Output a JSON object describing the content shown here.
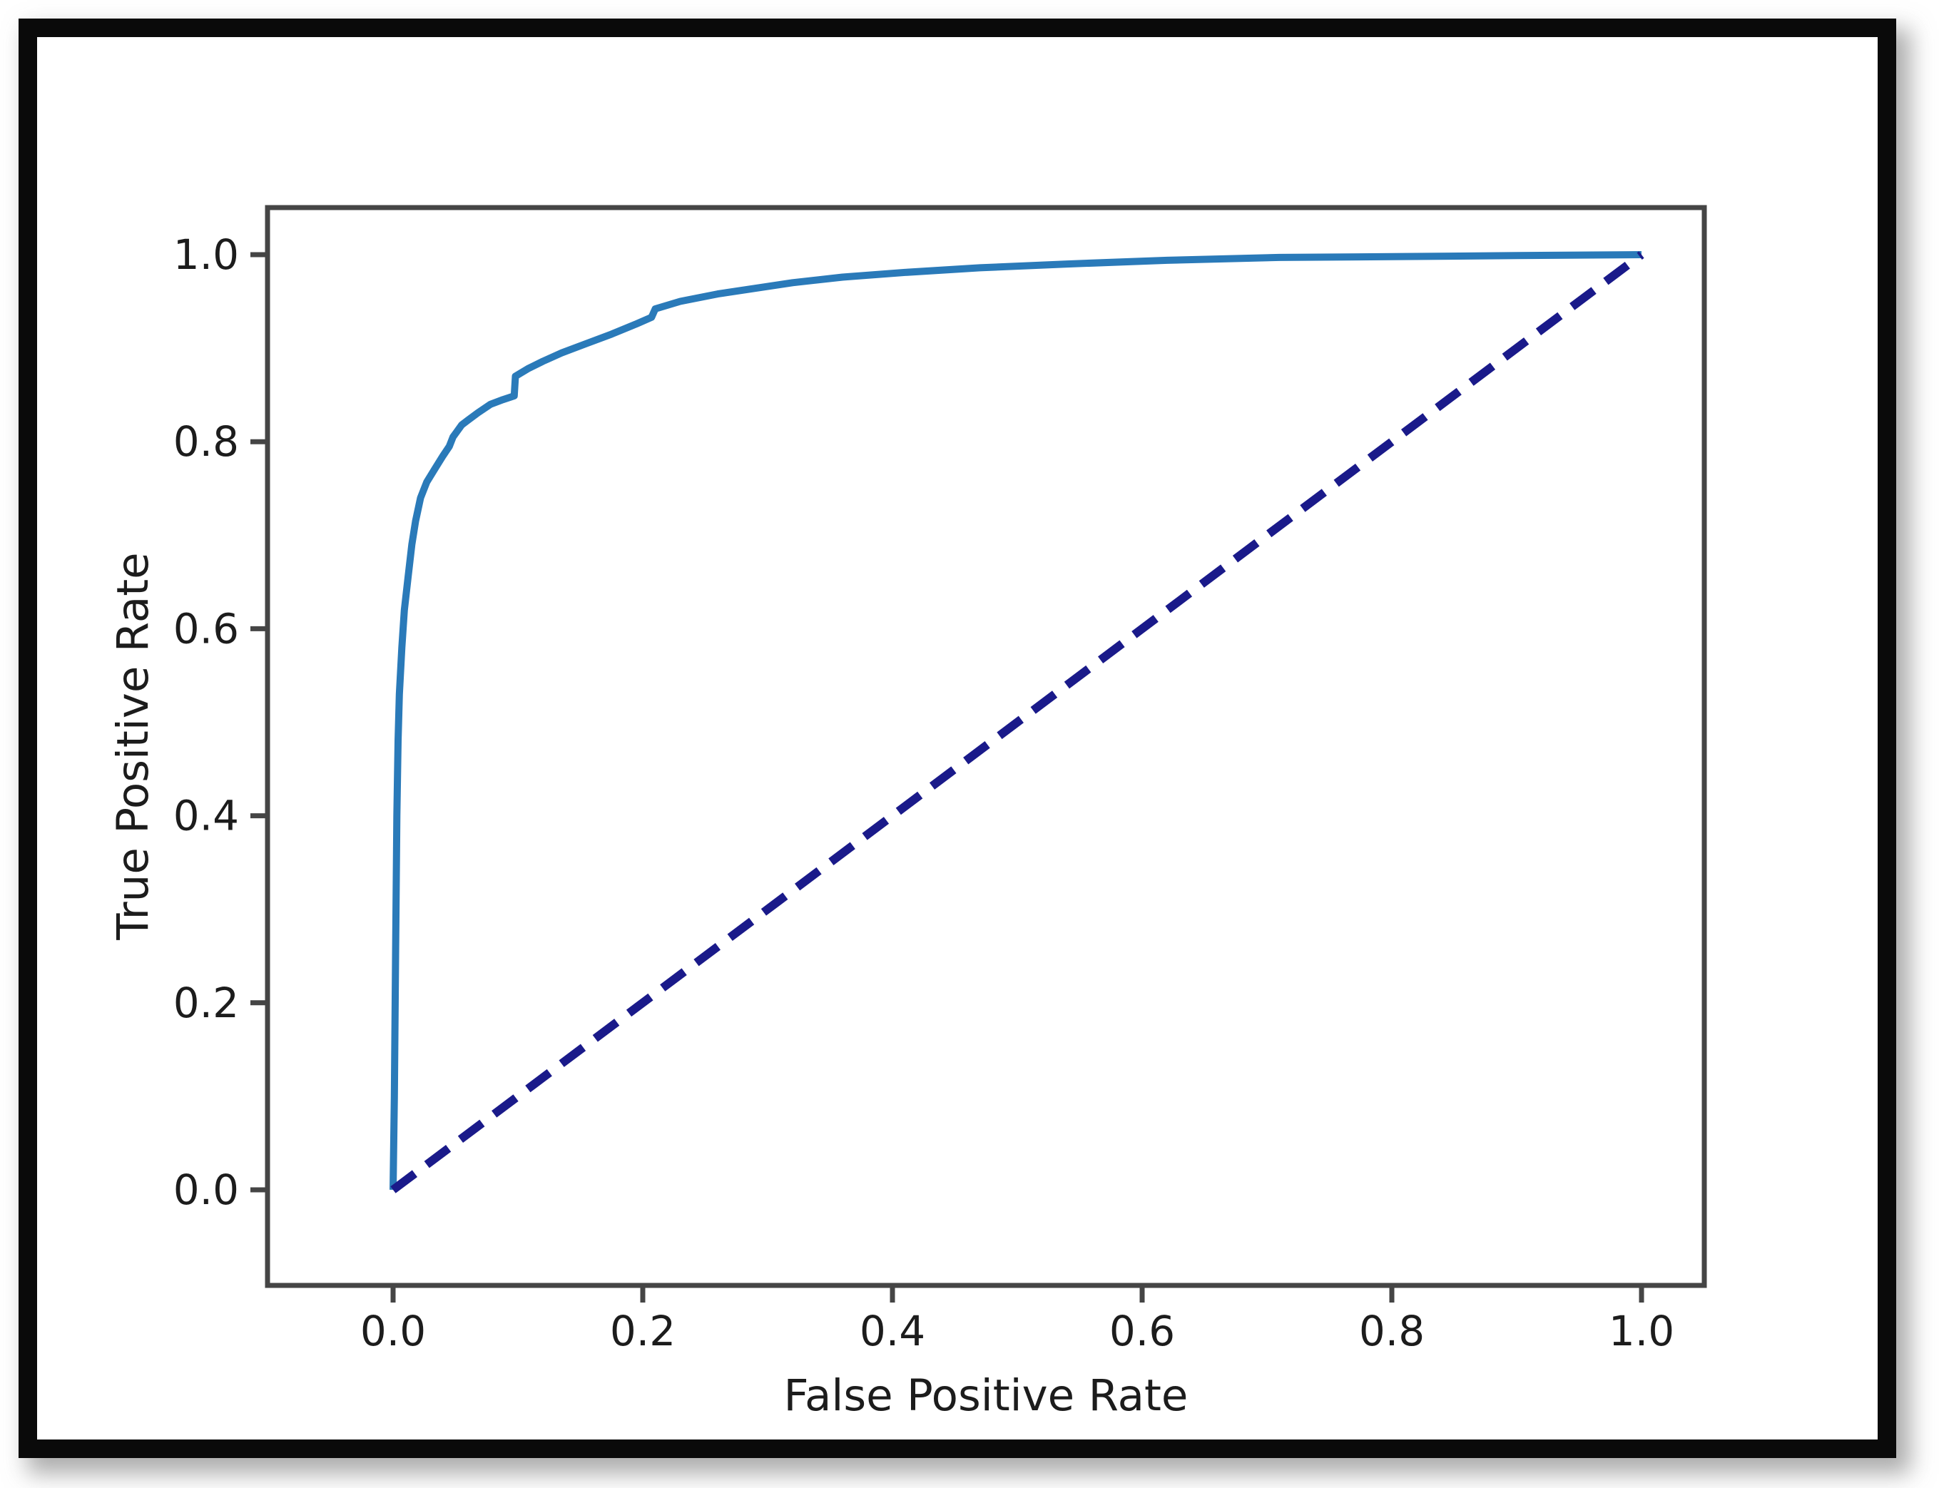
{
  "figure": {
    "kind": "roc-curve-figure",
    "background_color": "#ffffff",
    "frame_color": "#0a0a0a",
    "axis_line_color": "#454545",
    "tick_text_color": "#1c1c1c"
  },
  "chart_data": {
    "type": "line",
    "title": "",
    "xlabel": "False Positive Rate",
    "ylabel": "True Positive Rate",
    "xlim": [
      -0.1,
      1.05
    ],
    "ylim": [
      -0.1,
      1.05
    ],
    "grid": false,
    "legend_position": "none",
    "x_tick_labels": [
      "0.0",
      "0.2",
      "0.4",
      "0.6",
      "0.8",
      "1.0"
    ],
    "y_tick_labels": [
      "0.0",
      "0.2",
      "0.4",
      "0.6",
      "0.8",
      "1.0"
    ],
    "series": [
      {
        "name": "roc-curve",
        "color": "#2a7ab9",
        "style": "solid",
        "points": [
          [
            0.0,
            0.0
          ],
          [
            0.001,
            0.1
          ],
          [
            0.002,
            0.25
          ],
          [
            0.003,
            0.4
          ],
          [
            0.004,
            0.48
          ],
          [
            0.005,
            0.53
          ],
          [
            0.007,
            0.58
          ],
          [
            0.009,
            0.62
          ],
          [
            0.012,
            0.655
          ],
          [
            0.015,
            0.69
          ],
          [
            0.018,
            0.715
          ],
          [
            0.022,
            0.74
          ],
          [
            0.027,
            0.757
          ],
          [
            0.033,
            0.77
          ],
          [
            0.04,
            0.785
          ],
          [
            0.045,
            0.795
          ],
          [
            0.048,
            0.805
          ],
          [
            0.055,
            0.818
          ],
          [
            0.06,
            0.823
          ],
          [
            0.068,
            0.831
          ],
          [
            0.078,
            0.84
          ],
          [
            0.088,
            0.845
          ],
          [
            0.097,
            0.849
          ],
          [
            0.098,
            0.87
          ],
          [
            0.108,
            0.878
          ],
          [
            0.12,
            0.886
          ],
          [
            0.135,
            0.895
          ],
          [
            0.155,
            0.905
          ],
          [
            0.175,
            0.915
          ],
          [
            0.195,
            0.926
          ],
          [
            0.207,
            0.933
          ],
          [
            0.21,
            0.942
          ],
          [
            0.23,
            0.95
          ],
          [
            0.26,
            0.958
          ],
          [
            0.29,
            0.964
          ],
          [
            0.32,
            0.97
          ],
          [
            0.36,
            0.976
          ],
          [
            0.41,
            0.981
          ],
          [
            0.47,
            0.986
          ],
          [
            0.54,
            0.99
          ],
          [
            0.62,
            0.994
          ],
          [
            0.71,
            0.997
          ],
          [
            0.81,
            0.998
          ],
          [
            0.9,
            0.999
          ],
          [
            1.0,
            1.0
          ]
        ]
      },
      {
        "name": "chance-diagonal",
        "color": "#1a1a8a",
        "style": "dashed",
        "points": [
          [
            0.0,
            0.0
          ],
          [
            1.0,
            1.0
          ]
        ]
      }
    ]
  }
}
